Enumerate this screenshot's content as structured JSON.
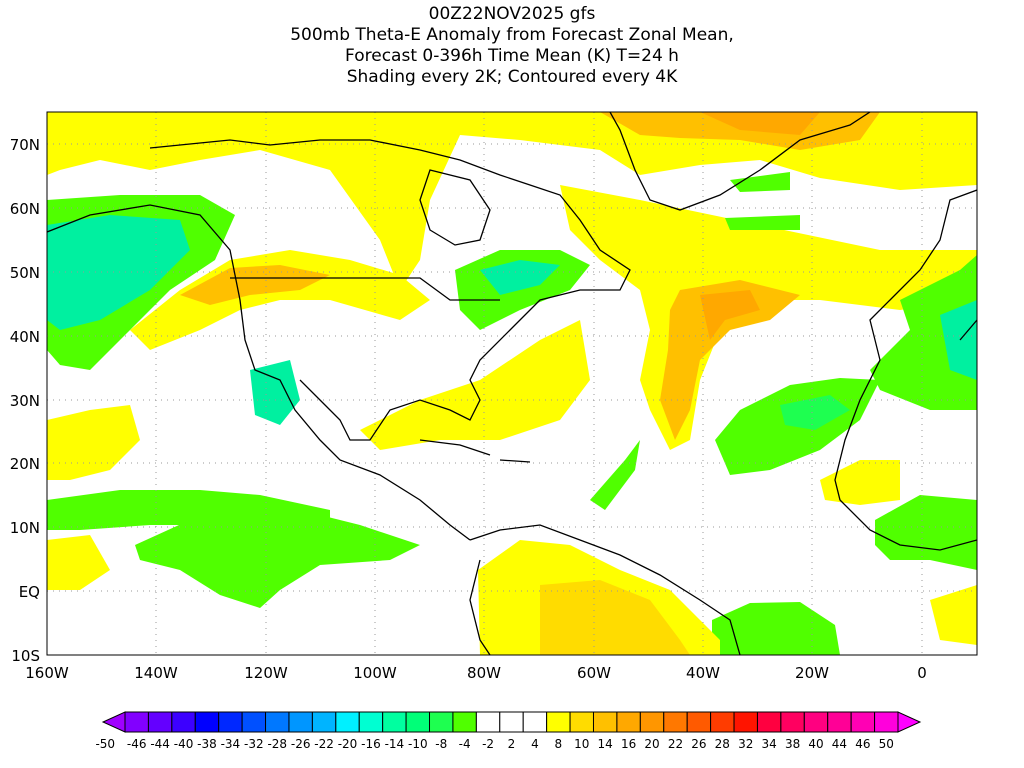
{
  "title": {
    "line1": "00Z22NOV2025 gfs",
    "line2": "500mb Theta-E Anomaly from Forecast Zonal Mean,",
    "line3": "Forecast 0-396h Time Mean (K) T=24 h",
    "line4": "Shading every 2K; Contoured every 4K"
  },
  "map": {
    "x_ticks": [
      "160W",
      "140W",
      "120W",
      "100W",
      "80W",
      "60W",
      "40W",
      "20W",
      "0"
    ],
    "x_tick_lon": [
      -160,
      -140,
      -120,
      -100,
      -80,
      -60,
      -40,
      -20,
      0
    ],
    "y_ticks": [
      "70N",
      "60N",
      "50N",
      "40N",
      "30N",
      "20N",
      "10N",
      "EQ",
      "10S"
    ],
    "y_tick_lat": [
      70,
      60,
      50,
      40,
      30,
      20,
      10,
      0,
      -10
    ],
    "lon_range": [
      -160,
      10
    ],
    "lat_range": [
      -10,
      75
    ]
  },
  "colorbar": {
    "labels": [
      "-50",
      "-46",
      "-44",
      "-40",
      "-38",
      "-34",
      "-32",
      "-28",
      "-26",
      "-22",
      "-20",
      "-16",
      "-14",
      "-10",
      "-8",
      "-4",
      "-2",
      "2",
      "4",
      "8",
      "10",
      "14",
      "16",
      "20",
      "22",
      "26",
      "28",
      "32",
      "34",
      "38",
      "40",
      "44",
      "46",
      "50"
    ],
    "low_arrow_color": "#a000ff",
    "high_arrow_color": "#ff00ff",
    "colors": [
      "#8200ff",
      "#6400ff",
      "#3c00ff",
      "#0000ff",
      "#0028ff",
      "#0050ff",
      "#0078ff",
      "#0096ff",
      "#00b4ff",
      "#00f0ff",
      "#00ffd2",
      "#00ffa0",
      "#00ff78",
      "#1eff50",
      "#50ff00",
      "#ffffff",
      "#ffffff",
      "#ffffff",
      "#ffff00",
      "#ffdc00",
      "#ffc000",
      "#ffa800",
      "#ff9600",
      "#ff7800",
      "#ff5a00",
      "#ff3c00",
      "#ff1400",
      "#ff0040",
      "#ff0060",
      "#ff0080",
      "#ff0096",
      "#ff00b4",
      "#ff00dc"
    ]
  }
}
